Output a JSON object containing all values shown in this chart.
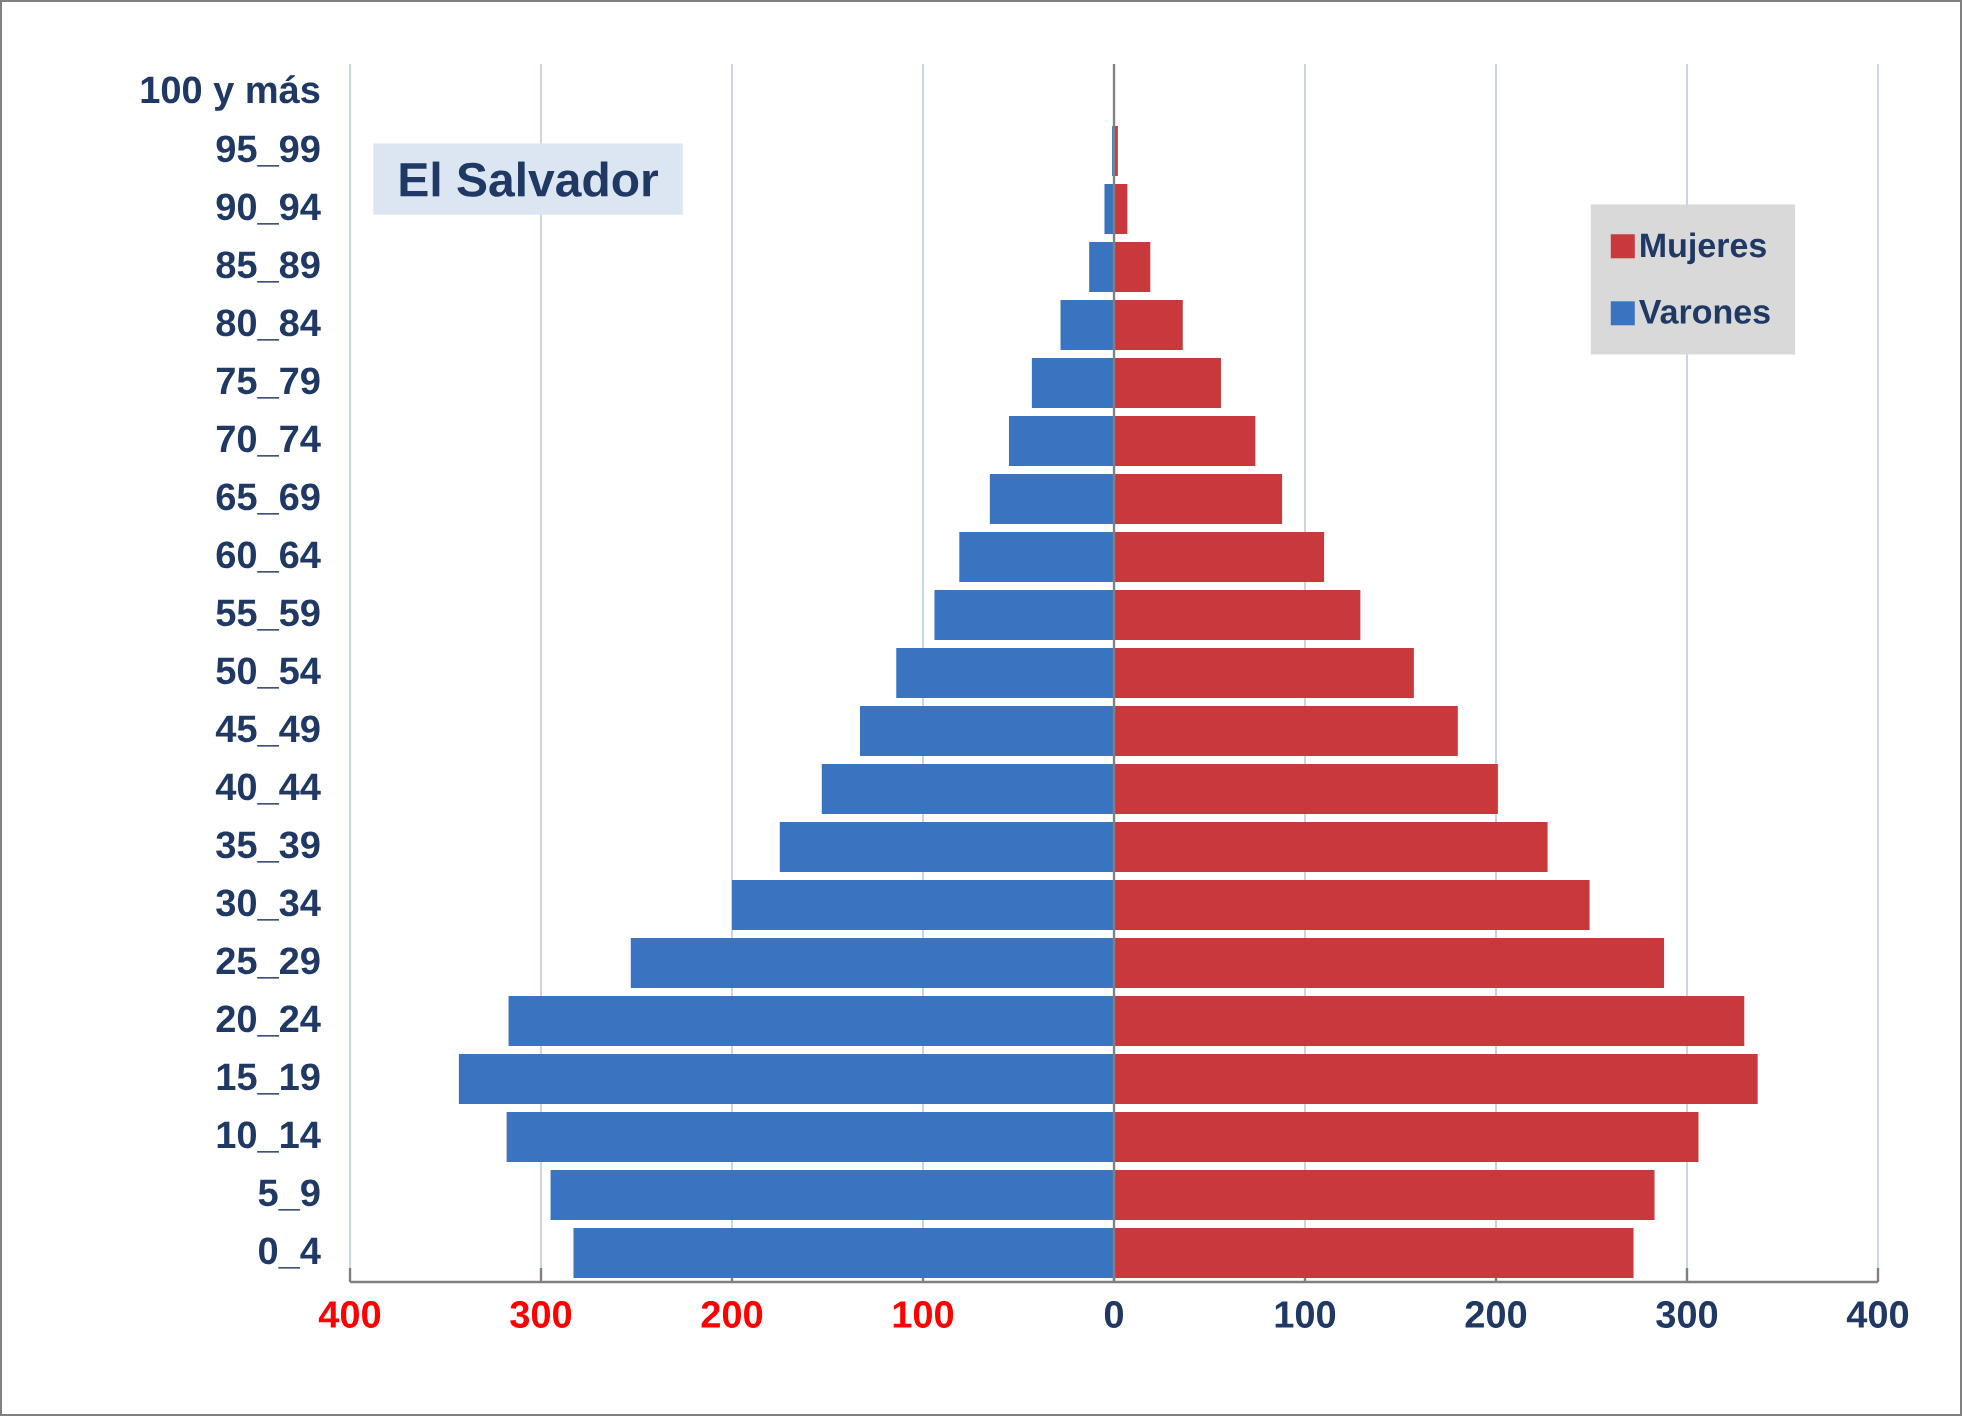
{
  "chart_data": {
    "type": "bar",
    "orientation": "horizontal",
    "title": "El Salvador",
    "categories": [
      "100 y más",
      "95_99",
      "90_94",
      "85_89",
      "80_84",
      "75_79",
      "70_74",
      "65_69",
      "60_64",
      "55_59",
      "50_54",
      "45_49",
      "40_44",
      "35_39",
      "30_34",
      "25_29",
      "20_24",
      "15_19",
      "10_14",
      "5_9",
      "0_4"
    ],
    "series": [
      {
        "name": "Mujeres",
        "color": "#c9383a",
        "values": [
          0,
          2,
          7,
          19,
          36,
          56,
          74,
          88,
          110,
          129,
          157,
          180,
          201,
          227,
          249,
          288,
          330,
          337,
          306,
          283,
          272
        ]
      },
      {
        "name": "Varones",
        "color": "#3a74c0",
        "values": [
          0,
          -1,
          -5,
          -13,
          -28,
          -43,
          -55,
          -65,
          -81,
          -94,
          -114,
          -133,
          -153,
          -175,
          -200,
          -253,
          -317,
          -343,
          -318,
          -295,
          -283
        ]
      }
    ],
    "xlim": [
      -400,
      400
    ],
    "xticks": [
      {
        "value": -400,
        "label": "400"
      },
      {
        "value": -300,
        "label": "300"
      },
      {
        "value": -200,
        "label": "200"
      },
      {
        "value": -100,
        "label": "100"
      },
      0,
      100,
      200,
      300,
      400
    ],
    "grid": "x",
    "legend": "top right",
    "stacked": true
  }
}
